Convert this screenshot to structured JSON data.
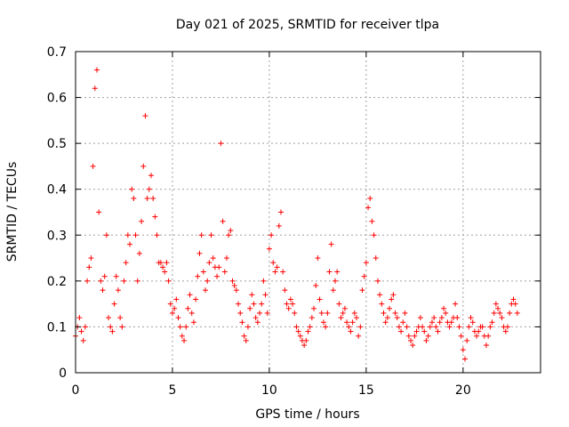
{
  "chart_data": {
    "type": "scatter",
    "title": "Day 021 of 2025, SRMTID for receiver tlpa",
    "xlabel": "GPS time / hours",
    "ylabel": "SRMTID / TECUs",
    "xlim": [
      0,
      24
    ],
    "ylim": [
      0,
      0.7
    ],
    "xticks": [
      0,
      5,
      10,
      15,
      20
    ],
    "xtick_labels": [
      "0",
      "5",
      "10",
      "15",
      "20"
    ],
    "yticks": [
      0,
      0.1,
      0.2,
      0.3,
      0.4,
      0.5,
      0.6,
      0.7
    ],
    "ytick_labels": [
      "0",
      "0.1",
      "0.2",
      "0.3",
      "0.4",
      "0.5",
      "0.6",
      "0.7"
    ],
    "grid": true,
    "marker": "+",
    "color": "#ff0000",
    "series": [
      {
        "name": "SRMTID",
        "x": [
          0.0,
          0.1,
          0.2,
          0.3,
          0.4,
          0.5,
          0.6,
          0.7,
          0.8,
          0.9,
          1.0,
          1.1,
          1.2,
          1.3,
          1.4,
          1.5,
          1.6,
          1.7,
          1.8,
          1.9,
          2.0,
          2.1,
          2.2,
          2.3,
          2.4,
          2.5,
          2.6,
          2.7,
          2.8,
          2.9,
          3.0,
          3.1,
          3.2,
          3.3,
          3.4,
          3.5,
          3.6,
          3.7,
          3.8,
          3.9,
          4.0,
          4.1,
          4.2,
          4.3,
          4.4,
          4.5,
          4.6,
          4.7,
          4.8,
          4.9,
          5.0,
          5.1,
          5.2,
          5.3,
          5.4,
          5.5,
          5.6,
          5.7,
          5.8,
          5.9,
          6.0,
          6.1,
          6.2,
          6.3,
          6.4,
          6.5,
          6.6,
          6.7,
          6.8,
          6.9,
          7.0,
          7.1,
          7.2,
          7.3,
          7.4,
          7.5,
          7.6,
          7.7,
          7.8,
          7.9,
          8.0,
          8.1,
          8.2,
          8.3,
          8.4,
          8.5,
          8.6,
          8.7,
          8.8,
          8.9,
          9.0,
          9.1,
          9.2,
          9.3,
          9.4,
          9.5,
          9.6,
          9.7,
          9.8,
          9.9,
          10.0,
          10.1,
          10.2,
          10.3,
          10.4,
          10.5,
          10.6,
          10.7,
          10.8,
          10.9,
          11.0,
          11.1,
          11.2,
          11.3,
          11.4,
          11.5,
          11.6,
          11.7,
          11.8,
          11.9,
          12.0,
          12.1,
          12.2,
          12.3,
          12.4,
          12.5,
          12.6,
          12.7,
          12.8,
          12.9,
          13.0,
          13.1,
          13.2,
          13.3,
          13.4,
          13.5,
          13.6,
          13.7,
          13.8,
          13.9,
          14.0,
          14.1,
          14.2,
          14.3,
          14.4,
          14.5,
          14.6,
          14.7,
          14.8,
          14.9,
          15.0,
          15.1,
          15.2,
          15.3,
          15.4,
          15.5,
          15.6,
          15.7,
          15.8,
          15.9,
          16.0,
          16.1,
          16.2,
          16.3,
          16.4,
          16.5,
          16.6,
          16.7,
          16.8,
          16.9,
          17.0,
          17.1,
          17.2,
          17.3,
          17.4,
          17.5,
          17.6,
          17.7,
          17.8,
          17.9,
          18.0,
          18.1,
          18.2,
          18.3,
          18.4,
          18.5,
          18.6,
          18.7,
          18.8,
          18.9,
          19.0,
          19.1,
          19.2,
          19.3,
          19.4,
          19.5,
          19.6,
          19.7,
          19.8,
          19.9,
          20.0,
          20.1,
          20.2,
          20.3,
          20.4,
          20.5,
          20.6,
          20.7,
          20.8,
          20.9,
          21.0,
          21.1,
          21.2,
          21.3,
          21.4,
          21.5,
          21.6,
          21.7,
          21.8,
          21.9,
          22.0,
          22.1,
          22.2,
          22.3,
          22.4,
          22.5,
          22.6,
          22.7,
          22.8
        ],
        "y": [
          0.08,
          0.1,
          0.12,
          0.09,
          0.07,
          0.1,
          0.2,
          0.23,
          0.25,
          0.45,
          0.62,
          0.66,
          0.35,
          0.2,
          0.18,
          0.21,
          0.3,
          0.12,
          0.1,
          0.09,
          0.15,
          0.21,
          0.18,
          0.12,
          0.1,
          0.2,
          0.24,
          0.3,
          0.28,
          0.4,
          0.38,
          0.3,
          0.2,
          0.26,
          0.33,
          0.45,
          0.56,
          0.38,
          0.4,
          0.43,
          0.38,
          0.34,
          0.3,
          0.24,
          0.24,
          0.23,
          0.22,
          0.24,
          0.2,
          0.15,
          0.13,
          0.14,
          0.16,
          0.12,
          0.1,
          0.08,
          0.07,
          0.1,
          0.14,
          0.17,
          0.13,
          0.11,
          0.16,
          0.21,
          0.26,
          0.3,
          0.22,
          0.18,
          0.2,
          0.24,
          0.3,
          0.25,
          0.23,
          0.21,
          0.23,
          0.5,
          0.33,
          0.22,
          0.25,
          0.3,
          0.31,
          0.2,
          0.19,
          0.18,
          0.15,
          0.13,
          0.11,
          0.08,
          0.07,
          0.1,
          0.14,
          0.17,
          0.15,
          0.12,
          0.11,
          0.13,
          0.15,
          0.2,
          0.17,
          0.13,
          0.27,
          0.3,
          0.24,
          0.22,
          0.23,
          0.32,
          0.35,
          0.22,
          0.18,
          0.15,
          0.14,
          0.16,
          0.15,
          0.13,
          0.1,
          0.09,
          0.08,
          0.07,
          0.06,
          0.07,
          0.09,
          0.1,
          0.12,
          0.14,
          0.19,
          0.25,
          0.16,
          0.13,
          0.11,
          0.1,
          0.13,
          0.22,
          0.28,
          0.18,
          0.2,
          0.22,
          0.15,
          0.12,
          0.13,
          0.14,
          0.11,
          0.1,
          0.09,
          0.11,
          0.13,
          0.12,
          0.08,
          0.1,
          0.18,
          0.21,
          0.24,
          0.36,
          0.38,
          0.33,
          0.3,
          0.25,
          0.2,
          0.17,
          0.15,
          0.13,
          0.11,
          0.12,
          0.14,
          0.16,
          0.17,
          0.13,
          0.12,
          0.1,
          0.09,
          0.11,
          0.13,
          0.1,
          0.08,
          0.07,
          0.06,
          0.08,
          0.09,
          0.1,
          0.12,
          0.1,
          0.09,
          0.07,
          0.08,
          0.1,
          0.11,
          0.12,
          0.1,
          0.09,
          0.11,
          0.12,
          0.14,
          0.13,
          0.11,
          0.1,
          0.11,
          0.12,
          0.15,
          0.12,
          0.1,
          0.08,
          0.05,
          0.03,
          0.07,
          0.1,
          0.12,
          0.11,
          0.09,
          0.08,
          0.09,
          0.1,
          0.1,
          0.08,
          0.06,
          0.08,
          0.1,
          0.11,
          0.13,
          0.15,
          0.14,
          0.13,
          0.12,
          0.1,
          0.09,
          0.1,
          0.13,
          0.15,
          0.16,
          0.15,
          0.13
        ]
      }
    ]
  }
}
